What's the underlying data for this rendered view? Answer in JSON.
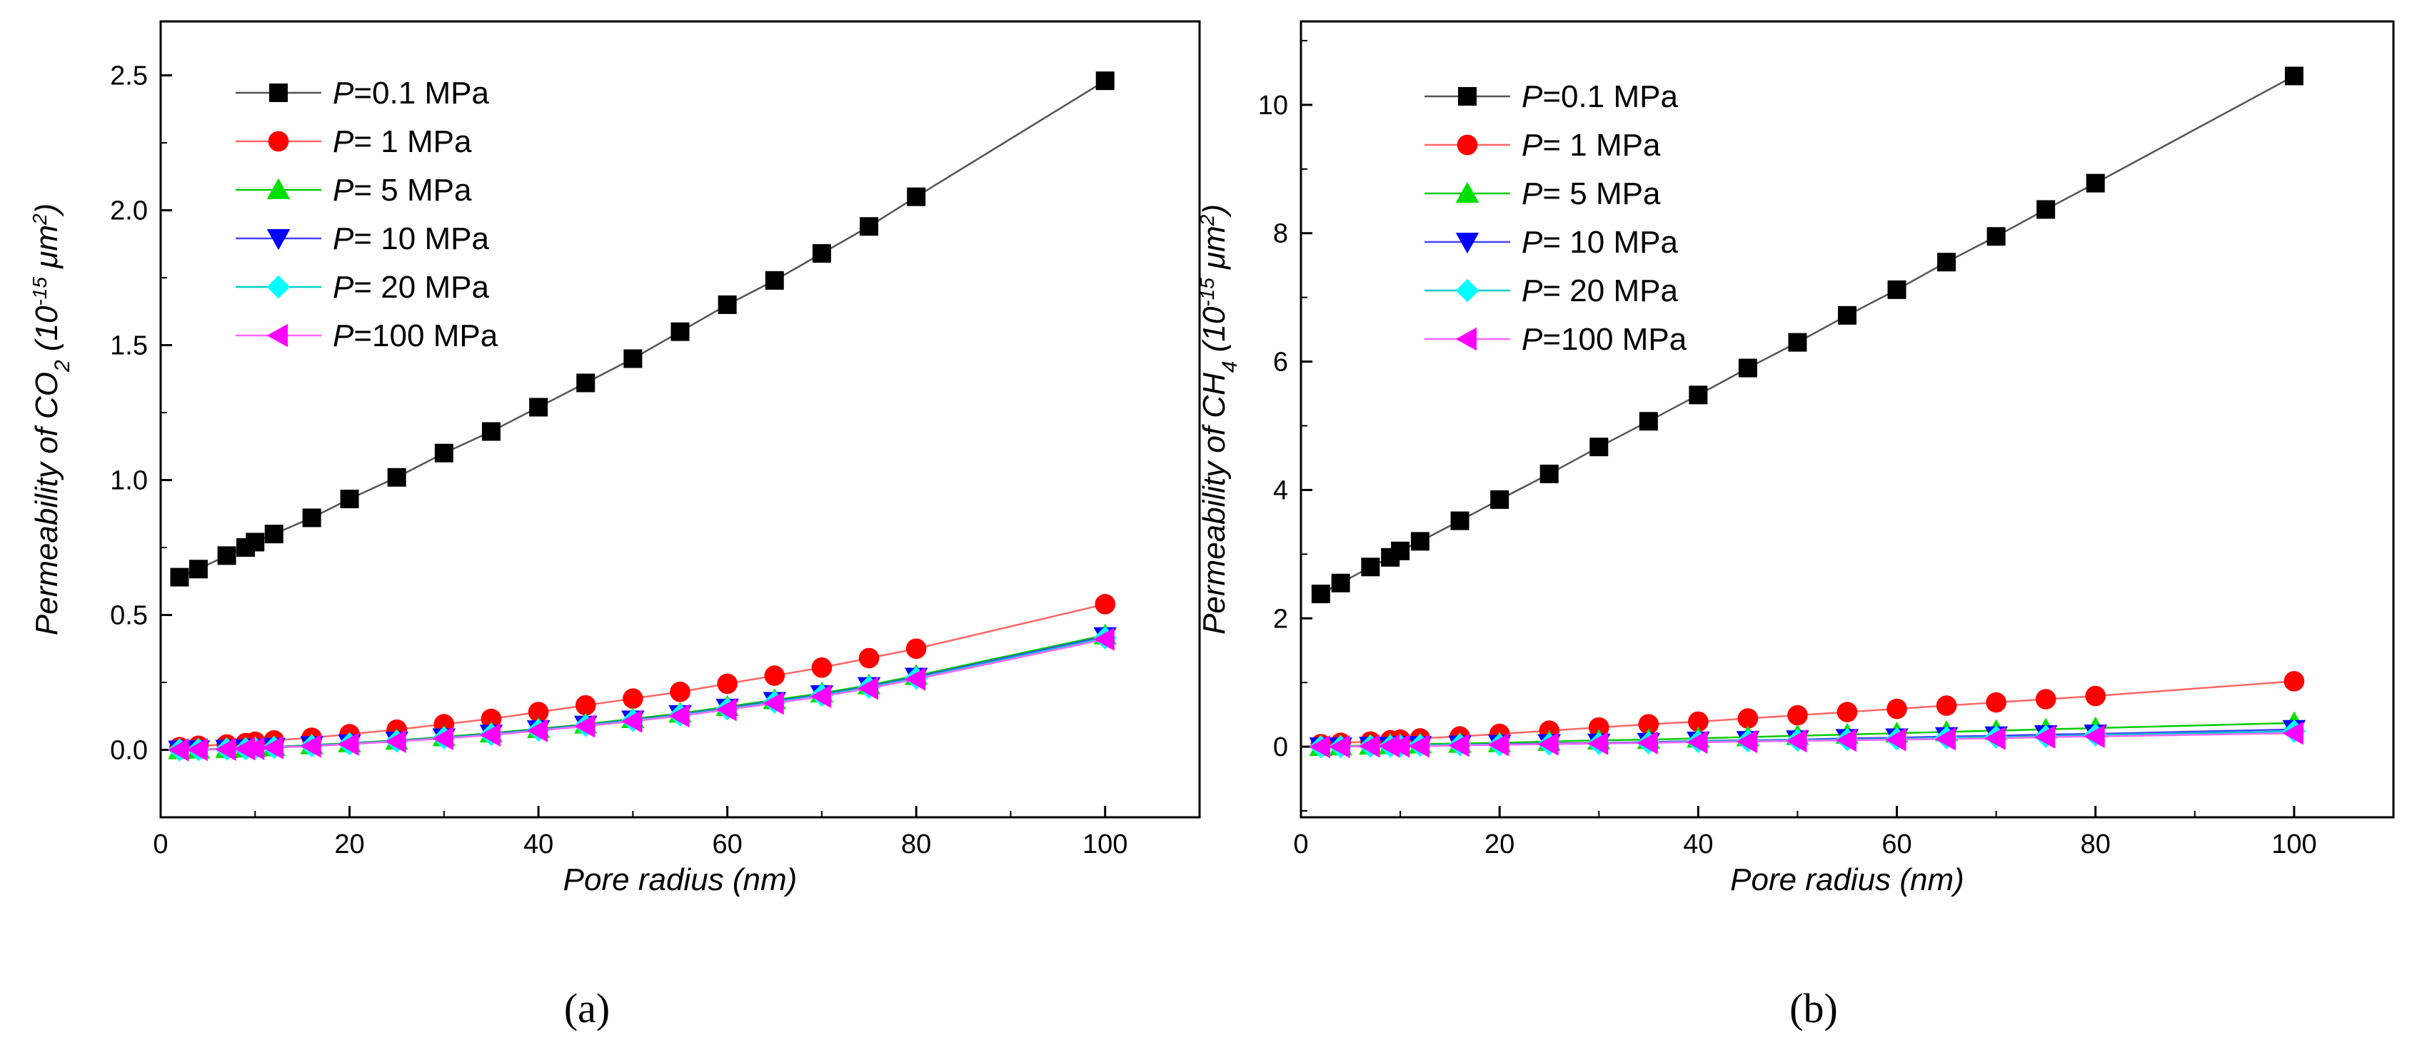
{
  "chart_data": [
    {
      "type": "line",
      "panel_label": "(a)",
      "xlabel": "Pore radius (nm)",
      "ylabel": "Permeability of CO",
      "ylabel_subscript": "2",
      "ylabel_unit": "(10",
      "ylabel_unit_exp": "-15",
      "ylabel_unit_tail": "μm",
      "ylabel_unit_tail_exp": "2",
      "ylabel_close": ")",
      "xlim": [
        0,
        110
      ],
      "ylim": [
        -0.25,
        2.7
      ],
      "xticks": [
        0,
        20,
        40,
        60,
        80,
        100
      ],
      "yticks": [
        0.0,
        0.5,
        1.0,
        1.5,
        2.0,
        2.5
      ],
      "ytick_labels": [
        "0.0",
        "0.5",
        "1.0",
        "1.5",
        "2.0",
        "2.5"
      ],
      "legend_position": "top-left",
      "x": [
        2,
        4,
        7,
        9,
        10,
        12,
        16,
        20,
        25,
        30,
        35,
        40,
        45,
        50,
        55,
        60,
        65,
        70,
        75,
        80,
        100
      ],
      "series": [
        {
          "name_prefix": "P",
          "name_suffix": "=0.1 MPa",
          "color": "#000000",
          "line_color": "#555555",
          "marker": "square",
          "values": [
            0.64,
            0.67,
            0.72,
            0.75,
            0.77,
            0.8,
            0.86,
            0.93,
            1.01,
            1.1,
            1.18,
            1.27,
            1.36,
            1.45,
            1.55,
            1.65,
            1.74,
            1.84,
            1.94,
            2.05,
            2.48
          ]
        },
        {
          "name_prefix": "P",
          "name_suffix": "=  1  MPa",
          "color": "#ff0000",
          "line_color": "#ff6666",
          "marker": "circle",
          "values": [
            0.01,
            0.015,
            0.02,
            0.025,
            0.03,
            0.035,
            0.045,
            0.058,
            0.075,
            0.095,
            0.115,
            0.14,
            0.165,
            0.19,
            0.215,
            0.245,
            0.275,
            0.305,
            0.34,
            0.375,
            0.54
          ]
        },
        {
          "name_prefix": "P",
          "name_suffix": "=  5  MPa",
          "color": "#00e000",
          "line_color": "#00cc00",
          "marker": "triangle-up",
          "values": [
            0.0,
            0.002,
            0.004,
            0.006,
            0.008,
            0.011,
            0.018,
            0.025,
            0.035,
            0.048,
            0.062,
            0.078,
            0.095,
            0.115,
            0.135,
            0.16,
            0.185,
            0.21,
            0.24,
            0.275,
            0.425
          ]
        },
        {
          "name_prefix": "P",
          "name_suffix": "= 10  MPa",
          "color": "#0000ff",
          "line_color": "#4444ff",
          "marker": "triangle-down",
          "values": [
            0.0,
            0.001,
            0.003,
            0.005,
            0.007,
            0.01,
            0.016,
            0.023,
            0.033,
            0.045,
            0.059,
            0.075,
            0.092,
            0.111,
            0.131,
            0.155,
            0.18,
            0.205,
            0.235,
            0.27,
            0.42
          ]
        },
        {
          "name_prefix": "P",
          "name_suffix": "= 20  MPa",
          "color": "#00ffff",
          "line_color": "#00cccc",
          "marker": "diamond",
          "values": [
            0.0,
            0.001,
            0.003,
            0.004,
            0.006,
            0.009,
            0.015,
            0.022,
            0.032,
            0.044,
            0.057,
            0.073,
            0.09,
            0.109,
            0.129,
            0.152,
            0.177,
            0.202,
            0.232,
            0.266,
            0.415
          ]
        },
        {
          "name_prefix": "P",
          "name_suffix": "=100 MPa",
          "color": "#ff00ff",
          "line_color": "#ff66ff",
          "marker": "triangle-left",
          "values": [
            0.0,
            0.001,
            0.002,
            0.004,
            0.005,
            0.008,
            0.014,
            0.021,
            0.031,
            0.042,
            0.055,
            0.071,
            0.088,
            0.106,
            0.126,
            0.149,
            0.173,
            0.198,
            0.228,
            0.262,
            0.41
          ]
        }
      ]
    },
    {
      "type": "line",
      "panel_label": "(b)",
      "xlabel": "Pore radius (nm)",
      "ylabel": "Permeability of CH",
      "ylabel_subscript": "4",
      "ylabel_unit": "(10",
      "ylabel_unit_exp": "-15",
      "ylabel_unit_tail": "μm",
      "ylabel_unit_tail_exp": "2",
      "ylabel_close": ")",
      "xlim": [
        0,
        110
      ],
      "ylim": [
        -1.1,
        11.3
      ],
      "xticks": [
        0,
        20,
        40,
        60,
        80,
        100
      ],
      "yticks": [
        0,
        2,
        4,
        6,
        8,
        10
      ],
      "ytick_labels": [
        "0",
        "2",
        "4",
        "6",
        "8",
        "10"
      ],
      "legend_position": "top-left",
      "x": [
        2,
        4,
        7,
        9,
        10,
        12,
        16,
        20,
        25,
        30,
        35,
        40,
        45,
        50,
        55,
        60,
        65,
        70,
        75,
        80,
        100
      ],
      "series": [
        {
          "name_prefix": "P",
          "name_suffix": "=0.1 MPa",
          "color": "#000000",
          "line_color": "#555555",
          "marker": "square",
          "values": [
            2.38,
            2.55,
            2.8,
            2.95,
            3.05,
            3.2,
            3.52,
            3.85,
            4.25,
            4.67,
            5.07,
            5.48,
            5.9,
            6.3,
            6.72,
            7.12,
            7.55,
            7.95,
            8.37,
            8.78,
            10.45
          ]
        },
        {
          "name_prefix": "P",
          "name_suffix": "=  1  MPa",
          "color": "#ff0000",
          "line_color": "#ff6666",
          "marker": "circle",
          "values": [
            0.04,
            0.06,
            0.08,
            0.1,
            0.11,
            0.13,
            0.16,
            0.2,
            0.25,
            0.3,
            0.35,
            0.39,
            0.44,
            0.49,
            0.54,
            0.59,
            0.64,
            0.69,
            0.74,
            0.79,
            1.02
          ]
        },
        {
          "name_prefix": "P",
          "name_suffix": "=  5  MPa",
          "color": "#00e000",
          "line_color": "#00cc00",
          "marker": "triangle-up",
          "values": [
            0.0,
            0.01,
            0.02,
            0.03,
            0.03,
            0.04,
            0.05,
            0.06,
            0.08,
            0.1,
            0.11,
            0.13,
            0.15,
            0.17,
            0.19,
            0.21,
            0.23,
            0.25,
            0.27,
            0.29,
            0.37
          ]
        },
        {
          "name_prefix": "P",
          "name_suffix": "= 10  MPa",
          "color": "#0000ff",
          "line_color": "#4444ff",
          "marker": "triangle-down",
          "values": [
            0.0,
            0.0,
            0.01,
            0.01,
            0.02,
            0.02,
            0.03,
            0.04,
            0.05,
            0.06,
            0.07,
            0.09,
            0.1,
            0.11,
            0.13,
            0.14,
            0.16,
            0.17,
            0.19,
            0.2,
            0.27
          ]
        },
        {
          "name_prefix": "P",
          "name_suffix": "= 20  MPa",
          "color": "#00ffff",
          "line_color": "#00cccc",
          "marker": "diamond",
          "values": [
            0.0,
            0.0,
            0.01,
            0.01,
            0.01,
            0.02,
            0.03,
            0.03,
            0.04,
            0.05,
            0.06,
            0.08,
            0.09,
            0.1,
            0.11,
            0.12,
            0.14,
            0.15,
            0.16,
            0.18,
            0.24
          ]
        },
        {
          "name_prefix": "P",
          "name_suffix": "=100 MPa",
          "color": "#ff00ff",
          "line_color": "#ff66ff",
          "marker": "triangle-left",
          "values": [
            0.0,
            0.0,
            0.01,
            0.01,
            0.01,
            0.01,
            0.02,
            0.03,
            0.04,
            0.05,
            0.06,
            0.07,
            0.08,
            0.09,
            0.1,
            0.11,
            0.12,
            0.13,
            0.15,
            0.16,
            0.21
          ]
        }
      ]
    }
  ]
}
